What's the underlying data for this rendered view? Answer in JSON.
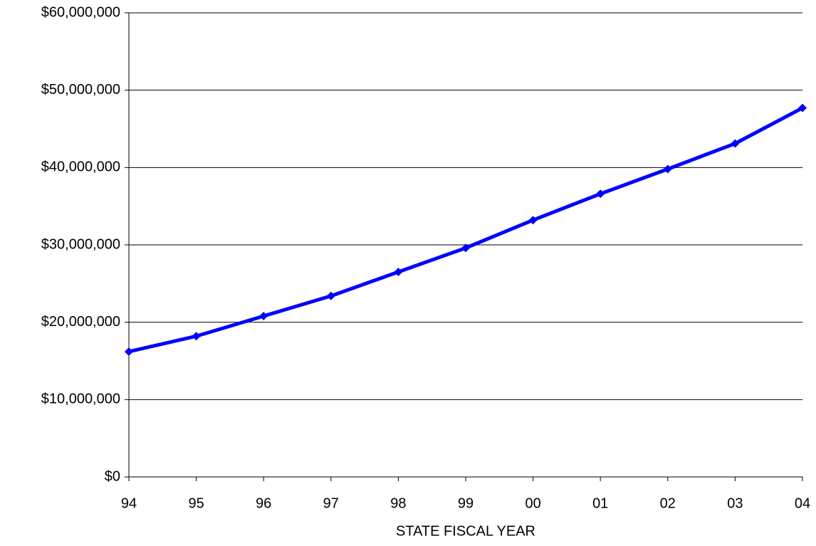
{
  "chart_data": {
    "type": "line",
    "xlabel": "STATE FISCAL YEAR",
    "categories": [
      "94",
      "95",
      "96",
      "97",
      "98",
      "99",
      "00",
      "01",
      "02",
      "03",
      "04"
    ],
    "series": [
      {
        "color": "#0000ff",
        "values": [
          16200000,
          18200000,
          20800000,
          23400000,
          26500000,
          29600000,
          33200000,
          36600000,
          39800000,
          43100000,
          47700000
        ]
      }
    ],
    "ylim": [
      0,
      60000000
    ],
    "yticks": [
      {
        "value": 0,
        "label": "$0"
      },
      {
        "value": 10000000,
        "label": "$10,000,000"
      },
      {
        "value": 20000000,
        "label": "$20,000,000"
      },
      {
        "value": 30000000,
        "label": "$30,000,000"
      },
      {
        "value": 40000000,
        "label": "$40,000,000"
      },
      {
        "value": 50000000,
        "label": "$50,000,000"
      },
      {
        "value": 60000000,
        "label": "$60,000,000"
      }
    ],
    "grid": true
  }
}
